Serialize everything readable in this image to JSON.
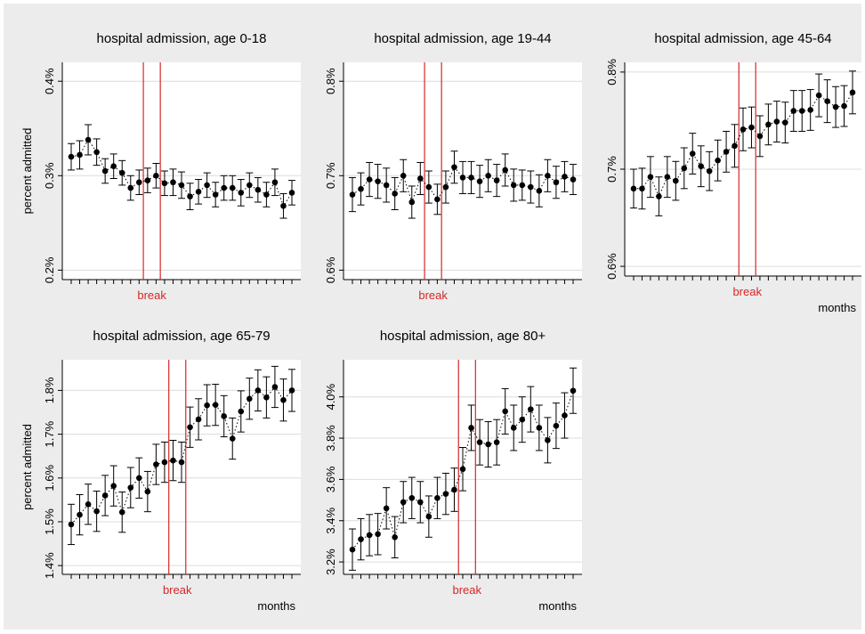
{
  "colors": {
    "background": "#ececec",
    "plot_area": "#ffffff",
    "grid": "#dcdcdc",
    "marker": "#000000",
    "break_line": "#d62728",
    "break_label": "#d62728"
  },
  "chart_data": [
    {
      "type": "scatter",
      "title": "hospital admission, age 0-18",
      "ylabel": "percent admitted",
      "xlabel": "",
      "break_label": "break",
      "ylim": [
        0.19,
        0.42
      ],
      "yticks": [
        0.2,
        0.3,
        0.4
      ],
      "ytick_labels": [
        "0.2%",
        "0.3%",
        "0.4%"
      ],
      "grid": true,
      "break_after_index": 9,
      "series": [
        {
          "points": [
            0.32,
            0.322,
            0.338,
            0.325,
            0.305,
            0.31,
            0.303,
            0.287,
            0.293,
            0.295,
            0.3,
            0.292,
            0.293,
            0.29,
            0.278,
            0.283,
            0.29,
            0.28,
            0.287,
            0.287,
            0.282,
            0.29,
            0.285,
            0.28,
            0.293,
            0.268,
            0.282
          ],
          "ci_half": [
            0.014,
            0.015,
            0.016,
            0.014,
            0.013,
            0.013,
            0.013,
            0.013,
            0.013,
            0.013,
            0.013,
            0.013,
            0.014,
            0.014,
            0.014,
            0.013,
            0.013,
            0.013,
            0.013,
            0.013,
            0.014,
            0.013,
            0.013,
            0.013,
            0.014,
            0.013,
            0.013
          ]
        }
      ]
    },
    {
      "type": "scatter",
      "title": "hospital admission, age 19-44",
      "ylabel": "",
      "xlabel": "",
      "break_label": "break",
      "ylim": [
        0.59,
        0.82
      ],
      "yticks": [
        0.6,
        0.7,
        0.8
      ],
      "ytick_labels": [
        "0.6%",
        "0.7%",
        "0.8%"
      ],
      "grid": true,
      "break_after_index": 9,
      "series": [
        {
          "points": [
            0.68,
            0.686,
            0.696,
            0.694,
            0.69,
            0.681,
            0.7,
            0.672,
            0.697,
            0.688,
            0.675,
            0.688,
            0.709,
            0.698,
            0.698,
            0.694,
            0.7,
            0.695,
            0.706,
            0.69,
            0.69,
            0.688,
            0.684,
            0.7,
            0.693,
            0.699,
            0.696
          ],
          "ci_half": [
            0.018,
            0.017,
            0.018,
            0.018,
            0.018,
            0.017,
            0.017,
            0.017,
            0.017,
            0.017,
            0.016,
            0.017,
            0.017,
            0.017,
            0.017,
            0.017,
            0.017,
            0.017,
            0.017,
            0.017,
            0.016,
            0.017,
            0.017,
            0.017,
            0.017,
            0.016,
            0.016
          ]
        }
      ]
    },
    {
      "type": "scatter",
      "title": "hospital admission, age 45-64",
      "ylabel": "",
      "xlabel": "months",
      "break_label": "break",
      "ylim": [
        0.59,
        0.81
      ],
      "yticks": [
        0.6,
        0.7,
        0.8
      ],
      "ytick_labels": [
        "0.6%",
        "0.7%",
        "0.8%"
      ],
      "grid": true,
      "break_after_index": 13,
      "series": [
        {
          "points": [
            0.68,
            0.68,
            0.692,
            0.672,
            0.692,
            0.688,
            0.701,
            0.716,
            0.703,
            0.698,
            0.709,
            0.718,
            0.724,
            0.741,
            0.743,
            0.734,
            0.746,
            0.749,
            0.748,
            0.76,
            0.76,
            0.761,
            0.776,
            0.77,
            0.764,
            0.765,
            0.779
          ],
          "ci_half": [
            0.02,
            0.021,
            0.021,
            0.02,
            0.021,
            0.02,
            0.021,
            0.021,
            0.021,
            0.02,
            0.021,
            0.021,
            0.022,
            0.022,
            0.021,
            0.021,
            0.021,
            0.021,
            0.021,
            0.021,
            0.021,
            0.021,
            0.022,
            0.022,
            0.021,
            0.021,
            0.022
          ]
        }
      ]
    },
    {
      "type": "scatter",
      "title": "hospital admission, age 65-79",
      "ylabel": "percent admitted",
      "xlabel": "months",
      "break_label": "break",
      "ylim": [
        1.38,
        1.87
      ],
      "yticks": [
        1.4,
        1.5,
        1.6,
        1.7,
        1.8
      ],
      "ytick_labels": [
        "1.4%",
        "1.5%",
        "1.6%",
        "1.7%",
        "1.8%"
      ],
      "grid": true,
      "break_after_index": 12,
      "series": [
        {
          "points": [
            1.494,
            1.516,
            1.54,
            1.524,
            1.56,
            1.582,
            1.522,
            1.578,
            1.6,
            1.569,
            1.631,
            1.636,
            1.64,
            1.636,
            1.716,
            1.734,
            1.766,
            1.767,
            1.741,
            1.69,
            1.752,
            1.781,
            1.8,
            1.784,
            1.808,
            1.778,
            1.8
          ],
          "ci_half": [
            0.046,
            0.046,
            0.046,
            0.046,
            0.046,
            0.046,
            0.046,
            0.046,
            0.046,
            0.046,
            0.046,
            0.046,
            0.046,
            0.046,
            0.046,
            0.047,
            0.047,
            0.047,
            0.047,
            0.047,
            0.047,
            0.047,
            0.047,
            0.047,
            0.047,
            0.048,
            0.048
          ]
        }
      ]
    },
    {
      "type": "scatter",
      "title": "hospital admission, age 80+",
      "ylabel": "",
      "xlabel": "months",
      "break_label": "break",
      "ylim": [
        3.14,
        4.18
      ],
      "yticks": [
        3.2,
        3.4,
        3.6,
        3.8,
        4.0
      ],
      "ytick_labels": [
        "3.2%",
        "3.4%",
        "3.6%",
        "3.8%",
        "4.0%"
      ],
      "grid": true,
      "break_after_index": 13,
      "series": [
        {
          "points": [
            3.26,
            3.31,
            3.33,
            3.335,
            3.46,
            3.32,
            3.49,
            3.51,
            3.49,
            3.42,
            3.51,
            3.53,
            3.55,
            3.65,
            3.85,
            3.78,
            3.77,
            3.78,
            3.93,
            3.85,
            3.89,
            3.94,
            3.85,
            3.79,
            3.86,
            3.91,
            4.03
          ],
          "ci_half": [
            0.1,
            0.1,
            0.1,
            0.1,
            0.1,
            0.1,
            0.1,
            0.1,
            0.1,
            0.1,
            0.1,
            0.1,
            0.105,
            0.105,
            0.11,
            0.11,
            0.11,
            0.11,
            0.11,
            0.11,
            0.11,
            0.11,
            0.11,
            0.11,
            0.11,
            0.11,
            0.11
          ]
        }
      ]
    }
  ]
}
